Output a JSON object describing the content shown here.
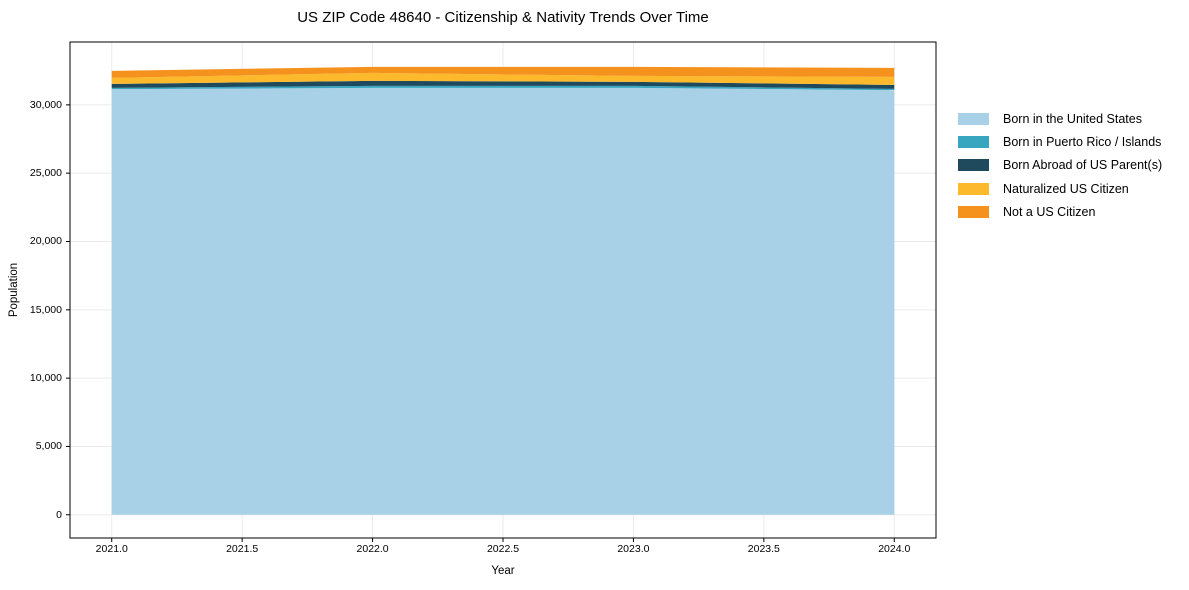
{
  "title": "US ZIP Code 48640 - Citizenship & Nativity Trends Over Time",
  "chart_data": {
    "type": "area",
    "stacked": true,
    "title": "US ZIP Code 48640 - Citizenship & Nativity Trends Over Time",
    "xlabel": "Year",
    "ylabel": "Population",
    "grid": true,
    "legend_position": "right-outside",
    "x": [
      2021,
      2022,
      2023,
      2024
    ],
    "series": [
      {
        "name": "Born in the United States",
        "color": "#a8d1e7",
        "values": [
          31150,
          31240,
          31245,
          31075
        ]
      },
      {
        "name": "Born in Puerto Rico / Islands",
        "color": "#39a6c0",
        "values": [
          95,
          150,
          145,
          95
        ]
      },
      {
        "name": "Born Abroad of US Parent(s)",
        "color": "#1f4a5e",
        "values": [
          290,
          365,
          290,
          290
        ]
      },
      {
        "name": "Naturalized US Citizen",
        "color": "#fcb92c",
        "values": [
          440,
          585,
          440,
          585
        ]
      },
      {
        "name": "Not a US Citizen",
        "color": "#f5921e",
        "values": [
          515,
          440,
          660,
          660
        ]
      }
    ],
    "totals": [
      32490,
      32780,
      32780,
      32705
    ],
    "xlim": [
      2020.84,
      2024.16
    ],
    "ylim": [
      -1700,
      34600
    ],
    "x_ticks": [
      {
        "value": 2021.0,
        "label": "2021.0"
      },
      {
        "value": 2021.5,
        "label": "2021.5"
      },
      {
        "value": 2022.0,
        "label": "2022.0"
      },
      {
        "value": 2022.5,
        "label": "2022.5"
      },
      {
        "value": 2023.0,
        "label": "2023.0"
      },
      {
        "value": 2023.5,
        "label": "2023.5"
      },
      {
        "value": 2024.0,
        "label": "2024.0"
      }
    ],
    "y_ticks": [
      {
        "value": 0,
        "label": "0"
      },
      {
        "value": 5000,
        "label": "5,000"
      },
      {
        "value": 10000,
        "label": "10,000"
      },
      {
        "value": 15000,
        "label": "15,000"
      },
      {
        "value": 20000,
        "label": "20,000"
      },
      {
        "value": 25000,
        "label": "25,000"
      },
      {
        "value": 30000,
        "label": "30,000"
      }
    ],
    "colors": {
      "grid": "#ebebeb",
      "spine": "#000000",
      "background": "#ffffff"
    }
  }
}
